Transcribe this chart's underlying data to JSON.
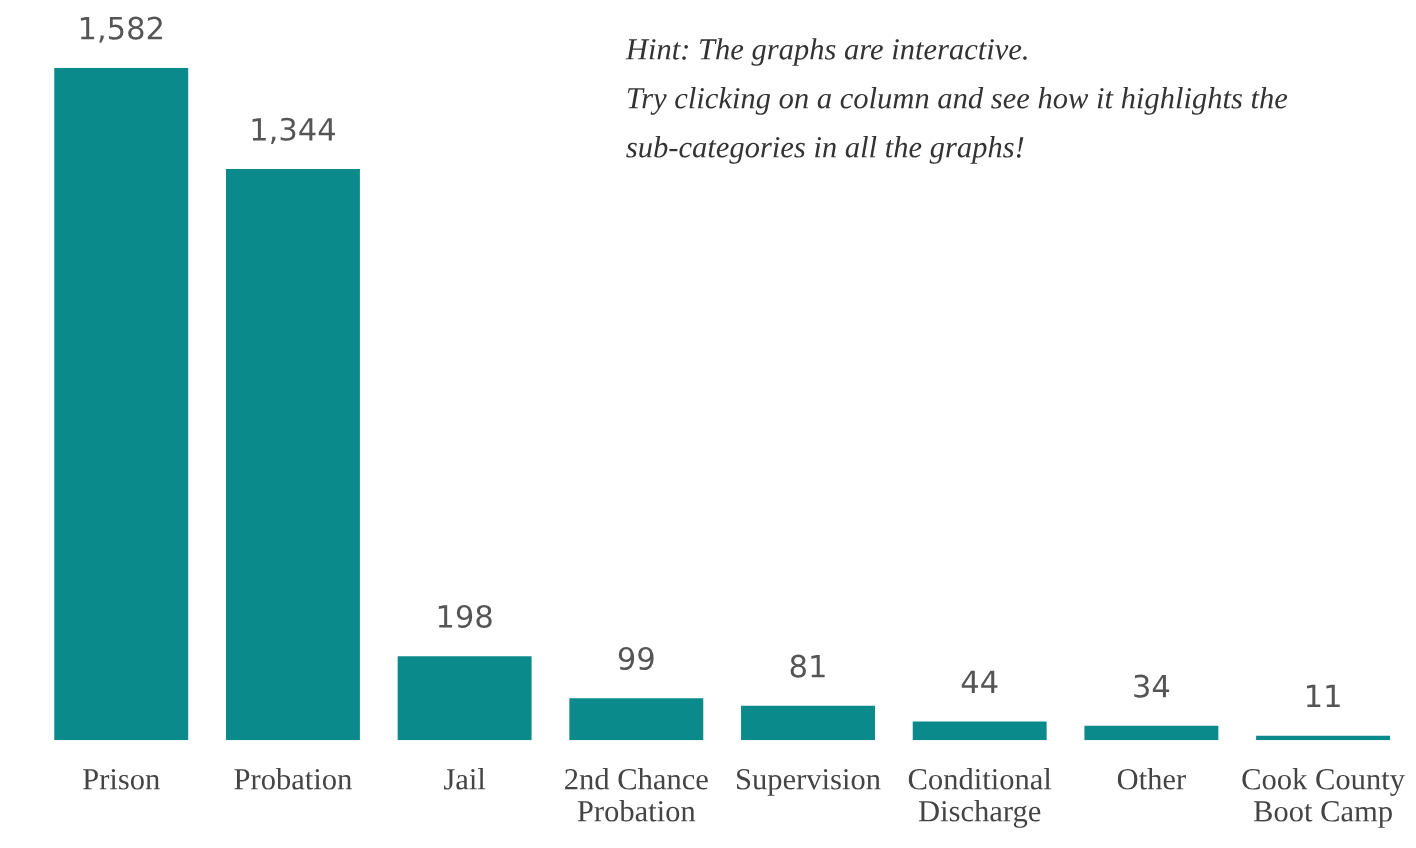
{
  "chart_data": {
    "type": "bar",
    "categories": [
      "Prison",
      "Probation",
      "Jail",
      "2nd Chance\nProbation",
      "Supervision",
      "Conditional\nDischarge",
      "Other",
      "Cook County\nBoot Camp"
    ],
    "values": [
      1582,
      1344,
      198,
      99,
      81,
      44,
      34,
      11
    ],
    "color": "#0b8a8c",
    "value_labels": [
      "1,582",
      "1,344",
      "198",
      "99",
      "81",
      "44",
      "34",
      "11"
    ],
    "grid": false,
    "legend": false,
    "annotations": [
      "Hint: The graphs are interactive.\nTry clicking on a column and see how it highlights the\nsub-categories in all the graphs!"
    ]
  }
}
